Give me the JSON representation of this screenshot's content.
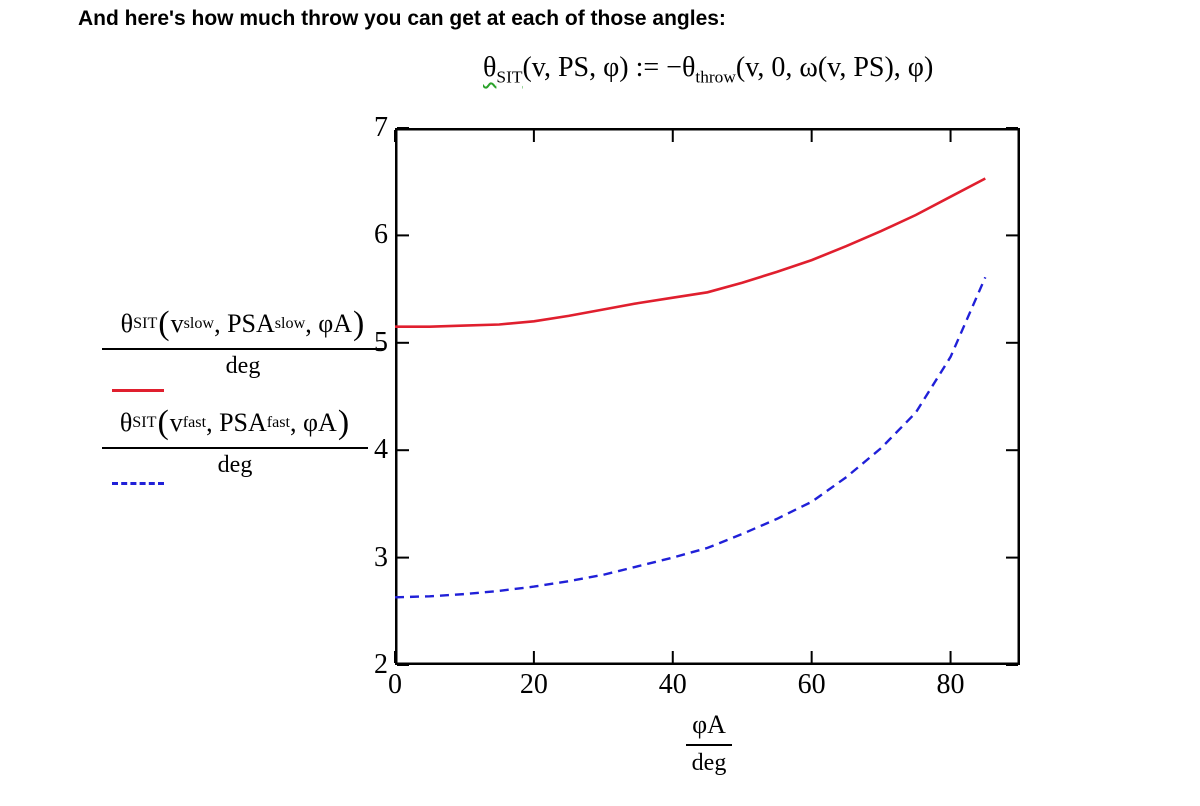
{
  "page": {
    "heading": "And here's how much throw you can get at each of those angles:"
  },
  "colors": {
    "trace_slow": "#e01f2e",
    "trace_fast": "#2020d8",
    "definition_underline": "#2aa22a",
    "axis": "#000000"
  },
  "formula": {
    "items": [
      {
        "t": "θ",
        "u": 1
      },
      {
        "s": "SIT",
        "u": 1
      },
      {
        "t": "(v, PS, φ) := −θ"
      },
      {
        "s": "throw"
      },
      {
        "t": "(v, 0, ω(v, PS), φ)"
      }
    ]
  },
  "legend": {
    "slow": {
      "numerator": [
        {
          "t": "θ"
        },
        {
          "s": "SIT"
        },
        {
          "p": "("
        },
        {
          "t": "v"
        },
        {
          "s": "slow"
        },
        {
          "t": ", PSA"
        },
        {
          "s": "slow"
        },
        {
          "t": ", φA"
        },
        {
          "p": ")"
        }
      ],
      "denominator": "deg"
    },
    "fast": {
      "numerator": [
        {
          "t": "θ"
        },
        {
          "s": "SIT"
        },
        {
          "p": "("
        },
        {
          "t": "v"
        },
        {
          "s": "fast"
        },
        {
          "t": ", PSA"
        },
        {
          "s": "fast"
        },
        {
          "t": ", φA"
        },
        {
          "p": ")"
        }
      ],
      "denominator": "deg"
    }
  },
  "chart_data": {
    "type": "line",
    "x": [
      0,
      5,
      10,
      15,
      20,
      25,
      30,
      35,
      40,
      45,
      50,
      55,
      60,
      65,
      70,
      75,
      80,
      85
    ],
    "series": [
      {
        "name": "θSIT(vslow, PSAslow, φA)/deg",
        "color": "#e01f2e",
        "style": "solid",
        "values": [
          5.15,
          5.15,
          5.16,
          5.17,
          5.2,
          5.25,
          5.31,
          5.37,
          5.42,
          5.47,
          5.56,
          5.66,
          5.77,
          5.9,
          6.04,
          6.19,
          6.36,
          6.53
        ]
      },
      {
        "name": "θSIT(vfast, PSAfast, φA)/deg",
        "color": "#2020d8",
        "style": "dashed",
        "values": [
          2.63,
          2.64,
          2.66,
          2.69,
          2.73,
          2.78,
          2.84,
          2.92,
          3.0,
          3.09,
          3.22,
          3.36,
          3.52,
          3.75,
          4.02,
          4.35,
          4.87,
          5.61
        ]
      }
    ],
    "xlim": [
      0,
      90
    ],
    "ylim": [
      2,
      7
    ],
    "x_ticks": [
      0,
      20,
      40,
      60,
      80
    ],
    "y_ticks": [
      2,
      3,
      4,
      5,
      6,
      7
    ],
    "grid": false,
    "legend_position": "left",
    "xlabel_num": "φA",
    "xlabel_den": "deg",
    "title": ""
  }
}
